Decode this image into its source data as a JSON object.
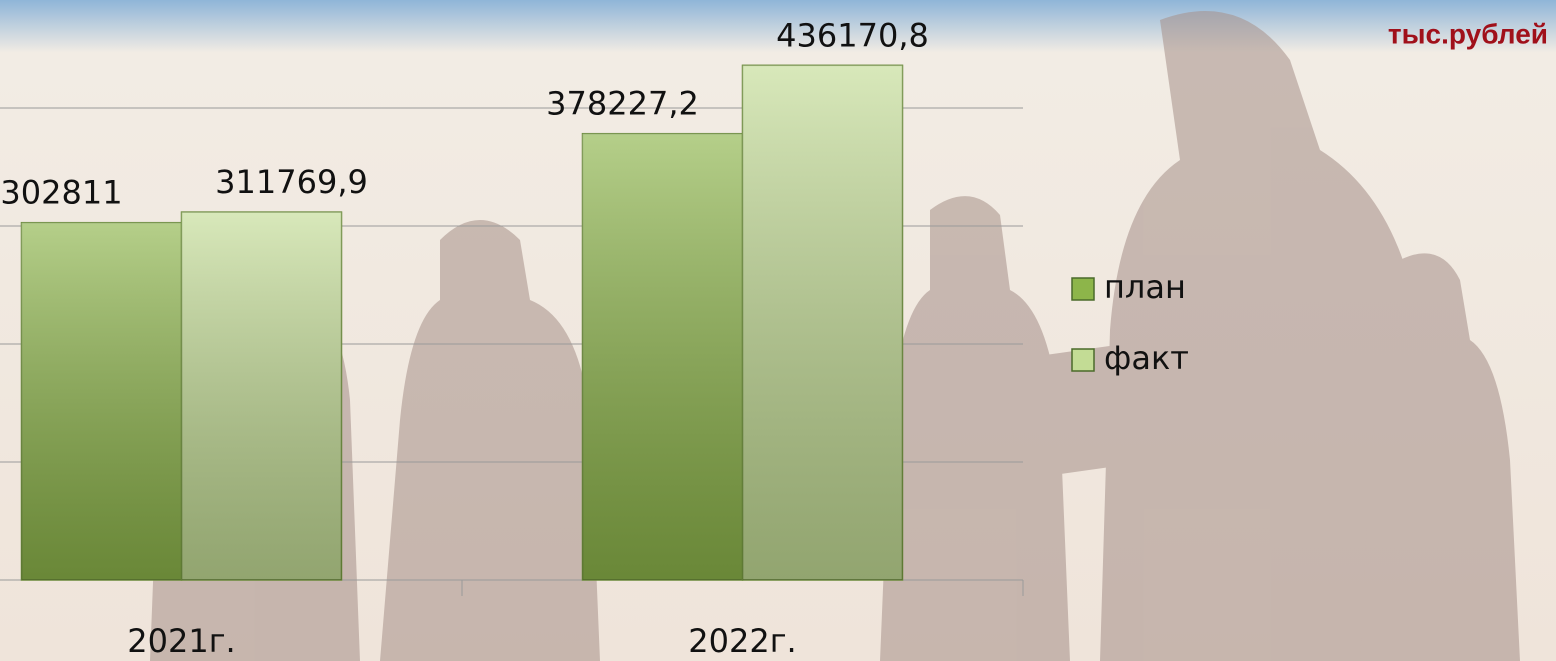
{
  "chart_data": {
    "type": "bar",
    "annotation": "тыс.рублей",
    "categories": [
      "2021г.",
      "2022г."
    ],
    "series": [
      {
        "name": "план",
        "color": "#8db54a",
        "values": [
          302811,
          378227.2
        ],
        "value_labels": [
          "302811",
          "378227,2"
        ]
      },
      {
        "name": "факт",
        "color": "#c3dc95",
        "values": [
          311769.9,
          436170.8
        ],
        "value_labels": [
          "311769,9",
          "436170,8"
        ]
      }
    ],
    "ylim": [
      0,
      450000
    ],
    "yticks": [
      0,
      100000,
      200000,
      300000,
      400000
    ],
    "grid": true,
    "legend": "right"
  }
}
